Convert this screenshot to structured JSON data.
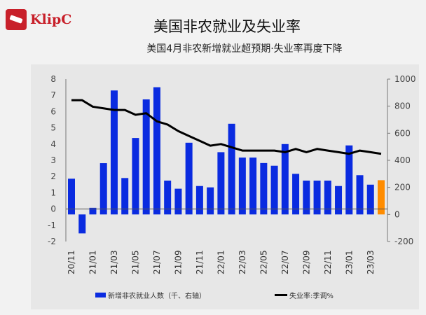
{
  "brand": {
    "logo_text": "KlipC"
  },
  "header": {
    "title": "美国非农就业及失业率",
    "subtitle": "美国4月非农新增就业超预期·失业率再度下降"
  },
  "chart_data": {
    "type": "bar+line",
    "title": "美国非农就业及失业率",
    "subtitle": "美国4月非农新增就业超预期·失业率再度下降",
    "categories": [
      "20/11",
      "20/12",
      "21/01",
      "21/02",
      "21/03",
      "21/04",
      "21/05",
      "21/06",
      "21/07",
      "21/08",
      "21/09",
      "21/10",
      "21/11",
      "21/12",
      "22/01",
      "22/02",
      "22/03",
      "22/04",
      "22/05",
      "22/06",
      "22/07",
      "22/08",
      "22/09",
      "22/10",
      "22/11",
      "22/12",
      "23/01",
      "23/02",
      "23/03",
      "23/04"
    ],
    "tick_labels": [
      "20/11",
      "21/01",
      "21/03",
      "21/05",
      "21/07",
      "21/09",
      "21/11",
      "22/01",
      "22/03",
      "22/05",
      "22/07",
      "22/09",
      "22/11",
      "23/01",
      "23/03"
    ],
    "series": [
      {
        "name": "新增非农就业人数（千、右轴）",
        "type": "bar",
        "axis": "right",
        "color": "#0a2be0",
        "highlight_last_color": "#ff8c00",
        "values": [
          264,
          -140,
          49,
          379,
          916,
          269,
          565,
          850,
          940,
          250,
          190,
          530,
          210,
          200,
          460,
          670,
          420,
          420,
          380,
          360,
          520,
          300,
          250,
          250,
          250,
          210,
          510,
          290,
          220,
          253
        ]
      },
      {
        "name": "失业率:季调%",
        "type": "line",
        "axis": "left",
        "color": "#000000",
        "values": [
          6.7,
          6.7,
          6.3,
          6.2,
          6.1,
          6.1,
          5.8,
          5.9,
          5.4,
          5.2,
          4.8,
          4.5,
          4.2,
          3.9,
          4.0,
          3.8,
          3.6,
          3.6,
          3.6,
          3.6,
          3.5,
          3.7,
          3.5,
          3.7,
          3.6,
          3.5,
          3.4,
          3.6,
          3.5,
          3.4
        ]
      }
    ],
    "left_axis": {
      "ylim": [
        -2,
        8
      ],
      "ticks": [
        -2,
        -1,
        0,
        1,
        2,
        3,
        4,
        5,
        6,
        7,
        8
      ]
    },
    "right_axis": {
      "ylim": [
        -200,
        1000
      ],
      "ticks": [
        -200,
        0,
        200,
        400,
        600,
        800,
        1000
      ]
    },
    "legend_position": "bottom"
  }
}
